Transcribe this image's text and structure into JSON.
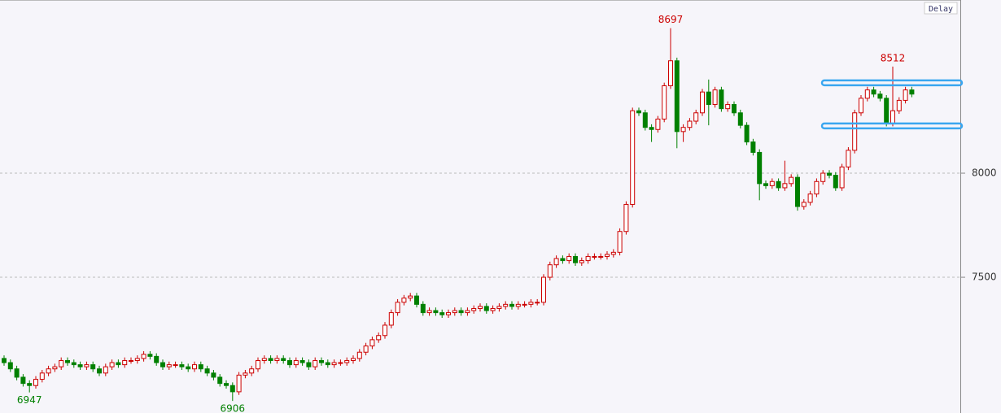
{
  "chart_data": {
    "type": "candlestick",
    "status": "Delay",
    "up_color": "#cc0000",
    "down_color": "#008000",
    "level_color": "#3aa6f0",
    "grid": true,
    "ylim": [
      6848,
      8832
    ],
    "yticks": [
      7500,
      8000
    ],
    "levels": [
      8434,
      8227
    ],
    "open": [
      7110,
      7090,
      7060,
      7020,
      6990,
      6980,
      7010,
      7040,
      7060,
      7070,
      7100,
      7090,
      7080,
      7070,
      7080,
      7060,
      7040,
      7070,
      7090,
      7080,
      7100,
      7100,
      7110,
      7130,
      7120,
      7090,
      7070,
      7080,
      7080,
      7070,
      7060,
      7080,
      7060,
      7040,
      7020,
      6990,
      6980,
      6950,
      7030,
      7040,
      7060,
      7100,
      7110,
      7100,
      7110,
      7100,
      7080,
      7100,
      7090,
      7070,
      7100,
      7090,
      7080,
      7090,
      7090,
      7100,
      7110,
      7140,
      7170,
      7200,
      7220,
      7270,
      7330,
      7380,
      7400,
      7410,
      7370,
      7330,
      7340,
      7330,
      7320,
      7330,
      7340,
      7330,
      7340,
      7350,
      7360,
      7340,
      7350,
      7360,
      7370,
      7360,
      7370,
      7370,
      7380,
      7380,
      7500,
      7560,
      7590,
      7580,
      7600,
      7570,
      7580,
      7600,
      7600,
      7600,
      7610,
      7620,
      7720,
      7850,
      8300,
      8290,
      8220,
      8210,
      8260,
      8420,
      8540,
      8200,
      8220,
      8250,
      8290,
      8390,
      8330,
      8400,
      8310,
      8330,
      8290,
      8230,
      8150,
      8100,
      7950,
      7940,
      7960,
      7930,
      7950,
      7980,
      7840,
      7860,
      7900,
      7960,
      8000,
      7990,
      7930,
      8030,
      8110,
      8290,
      8360,
      8400,
      8380,
      8360,
      8240,
      8300,
      8350,
      8400
    ],
    "high": [
      7125,
      7105,
      7075,
      7035,
      7005,
      7025,
      7055,
      7075,
      7085,
      7115,
      7115,
      7105,
      7095,
      7095,
      7095,
      7075,
      7085,
      7105,
      7105,
      7115,
      7115,
      7125,
      7145,
      7145,
      7135,
      7105,
      7095,
      7095,
      7095,
      7085,
      7095,
      7095,
      7075,
      7055,
      7035,
      7005,
      6995,
      7045,
      7055,
      7075,
      7115,
      7125,
      7125,
      7125,
      7125,
      7115,
      7115,
      7115,
      7105,
      7115,
      7115,
      7105,
      7105,
      7105,
      7115,
      7125,
      7155,
      7185,
      7215,
      7235,
      7285,
      7345,
      7395,
      7415,
      7425,
      7425,
      7385,
      7355,
      7355,
      7345,
      7345,
      7355,
      7355,
      7355,
      7365,
      7375,
      7375,
      7365,
      7375,
      7385,
      7385,
      7385,
      7385,
      7395,
      7395,
      7515,
      7575,
      7605,
      7605,
      7615,
      7615,
      7595,
      7615,
      7615,
      7615,
      7625,
      7635,
      7735,
      7865,
      8315,
      8315,
      8305,
      8235,
      8275,
      8435,
      8697,
      8555,
      8235,
      8265,
      8305,
      8405,
      8450,
      8415,
      8415,
      8345,
      8345,
      8305,
      8245,
      8165,
      8115,
      7965,
      7975,
      7975,
      8060,
      7995,
      7995,
      7875,
      7915,
      7975,
      8015,
      8015,
      8005,
      8045,
      8125,
      8305,
      8375,
      8415,
      8415,
      8395,
      8375,
      8512,
      8365,
      8415,
      8415
    ],
    "low": [
      7075,
      7045,
      7005,
      6975,
      6947,
      6965,
      6995,
      7025,
      7045,
      7055,
      7075,
      7065,
      7055,
      7055,
      7045,
      7025,
      7025,
      7055,
      7065,
      7065,
      7085,
      7085,
      7095,
      7105,
      7075,
      7055,
      7055,
      7065,
      7055,
      7045,
      7045,
      7045,
      7025,
      7005,
      6975,
      6965,
      6906,
      6935,
      7015,
      7025,
      7045,
      7085,
      7085,
      7085,
      7085,
      7065,
      7065,
      7075,
      7055,
      7055,
      7075,
      7065,
      7065,
      7075,
      7075,
      7085,
      7095,
      7125,
      7155,
      7185,
      7205,
      7255,
      7315,
      7365,
      7385,
      7355,
      7315,
      7315,
      7315,
      7305,
      7305,
      7315,
      7315,
      7315,
      7325,
      7335,
      7325,
      7325,
      7335,
      7345,
      7345,
      7345,
      7355,
      7355,
      7365,
      7365,
      7485,
      7545,
      7565,
      7565,
      7555,
      7555,
      7565,
      7585,
      7585,
      7585,
      7595,
      7605,
      7705,
      7835,
      8275,
      8205,
      8150,
      8195,
      8245,
      8405,
      8120,
      8150,
      8205,
      8235,
      8275,
      8230,
      8315,
      8295,
      8295,
      8275,
      8215,
      8135,
      8085,
      7870,
      7925,
      7925,
      7915,
      7915,
      7935,
      7820,
      7825,
      7845,
      7885,
      7945,
      7975,
      7915,
      7915,
      8015,
      8095,
      8275,
      8345,
      8365,
      8345,
      8225,
      8225,
      8285,
      8335,
      8365
    ],
    "close": [
      7090,
      7060,
      7020,
      6990,
      6980,
      7010,
      7040,
      7060,
      7070,
      7100,
      7090,
      7080,
      7070,
      7080,
      7060,
      7040,
      7070,
      7090,
      7080,
      7100,
      7100,
      7110,
      7130,
      7120,
      7090,
      7070,
      7080,
      7080,
      7070,
      7060,
      7080,
      7060,
      7040,
      7020,
      6990,
      6980,
      6950,
      7030,
      7040,
      7060,
      7100,
      7110,
      7100,
      7110,
      7100,
      7080,
      7100,
      7090,
      7070,
      7100,
      7090,
      7080,
      7090,
      7090,
      7100,
      7110,
      7140,
      7170,
      7200,
      7220,
      7270,
      7330,
      7380,
      7400,
      7410,
      7370,
      7330,
      7340,
      7330,
      7320,
      7330,
      7340,
      7330,
      7340,
      7350,
      7360,
      7340,
      7350,
      7360,
      7370,
      7360,
      7370,
      7370,
      7380,
      7380,
      7500,
      7560,
      7590,
      7580,
      7600,
      7570,
      7580,
      7600,
      7600,
      7600,
      7610,
      7620,
      7720,
      7850,
      8300,
      8290,
      8220,
      8210,
      8260,
      8420,
      8540,
      8200,
      8220,
      8250,
      8290,
      8390,
      8330,
      8400,
      8310,
      8330,
      8290,
      8230,
      8150,
      8100,
      7950,
      7940,
      7960,
      7930,
      7950,
      7980,
      7840,
      7860,
      7900,
      7960,
      8000,
      7990,
      7930,
      8030,
      8110,
      8290,
      8360,
      8400,
      8380,
      8360,
      8240,
      8300,
      8350,
      8400,
      8380
    ]
  }
}
